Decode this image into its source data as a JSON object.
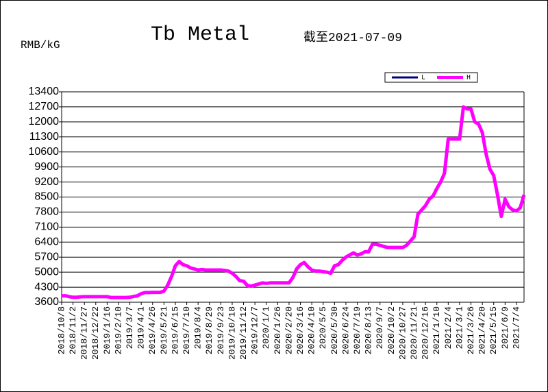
{
  "chart_data": {
    "type": "line",
    "title": "Tb Metal",
    "subtitle": "截至2021-07-09",
    "y_label": "RMB/kG",
    "categories": [
      "2018/10/8",
      null,
      null,
      "2018/11/2",
      null,
      null,
      "2018/11/27",
      null,
      null,
      "2018/12/22",
      null,
      null,
      "2019/1/16",
      null,
      null,
      "2019/2/10",
      null,
      null,
      "2019/3/7",
      null,
      null,
      "2019/4/1",
      null,
      null,
      "2019/4/26",
      null,
      null,
      "2019/5/21",
      null,
      null,
      "2019/6/15",
      null,
      null,
      "2019/7/10",
      null,
      null,
      "2019/8/4",
      null,
      null,
      "2019/8/29",
      null,
      null,
      "2019/9/23",
      null,
      null,
      "2019/10/18",
      null,
      null,
      "2019/11/12",
      null,
      null,
      "2019/12/7",
      null,
      null,
      "2020/1/1",
      null,
      null,
      "2020/1/26",
      null,
      null,
      "2020/2/20",
      null,
      null,
      "2020/3/16",
      null,
      null,
      "2020/4/10",
      null,
      null,
      "2020/5/5",
      null,
      null,
      "2020/5/30",
      null,
      null,
      "2020/6/24",
      null,
      null,
      "2020/7/19",
      null,
      null,
      "2020/8/13",
      null,
      null,
      "2020/9/7",
      null,
      null,
      "2020/10/2",
      null,
      null,
      "2020/10/27",
      null,
      null,
      "2020/11/21",
      null,
      null,
      "2020/12/16",
      null,
      null,
      "2021/1/10",
      null,
      null,
      "2021/2/4",
      null,
      null,
      "2021/3/1",
      null,
      null,
      "2021/3/26",
      null,
      null,
      "2021/4/20",
      null,
      null,
      "2021/5/15",
      null,
      null,
      "2021/6/9",
      null,
      null,
      "2021/7/4",
      null,
      null
    ],
    "series": [
      {
        "name": "L",
        "color": "#000080",
        "values": [
          3900,
          3900,
          3860,
          3830,
          3830,
          3850,
          3860,
          3860,
          3860,
          3860,
          3860,
          3860,
          3860,
          3820,
          3820,
          3820,
          3820,
          3820,
          3830,
          3870,
          3900,
          4000,
          4050,
          4050,
          4060,
          4060,
          4060,
          4120,
          4400,
          4800,
          5300,
          5500,
          5350,
          5300,
          5200,
          5150,
          5100,
          5120,
          5100,
          5100,
          5100,
          5100,
          5100,
          5080,
          5050,
          4950,
          4800,
          4600,
          4580,
          4380,
          4350,
          4400,
          4450,
          4500,
          4480,
          4500,
          4500,
          4500,
          4500,
          4500,
          4500,
          4750,
          5150,
          5350,
          5450,
          5250,
          5100,
          5050,
          5050,
          5020,
          5000,
          4950,
          5300,
          5350,
          5550,
          5700,
          5800,
          5900,
          5800,
          5850,
          5950,
          5950,
          6300,
          6300,
          6250,
          6200,
          6150,
          6150,
          6150,
          6150,
          6150,
          6250,
          6450,
          6650,
          7700,
          7900,
          8100,
          8400,
          8550,
          8900,
          9200,
          9600,
          11200,
          11200,
          11200,
          11200,
          12700,
          12600,
          12600,
          12000,
          11900,
          11500,
          10500,
          9800,
          9500,
          8600,
          7600,
          8400,
          8050,
          7900,
          7850,
          8000,
          8600
        ]
      },
      {
        "name": "H",
        "color": "#ff00ff",
        "values": [
          3900,
          3900,
          3860,
          3830,
          3830,
          3850,
          3860,
          3860,
          3860,
          3860,
          3860,
          3860,
          3860,
          3820,
          3820,
          3820,
          3820,
          3820,
          3830,
          3870,
          3900,
          4000,
          4050,
          4050,
          4060,
          4060,
          4060,
          4120,
          4400,
          4800,
          5300,
          5500,
          5350,
          5300,
          5200,
          5150,
          5100,
          5120,
          5100,
          5100,
          5100,
          5100,
          5100,
          5080,
          5050,
          4950,
          4800,
          4600,
          4580,
          4380,
          4350,
          4400,
          4450,
          4500,
          4480,
          4500,
          4500,
          4500,
          4500,
          4500,
          4500,
          4750,
          5150,
          5350,
          5450,
          5250,
          5100,
          5050,
          5050,
          5020,
          5000,
          4950,
          5300,
          5350,
          5550,
          5700,
          5800,
          5900,
          5800,
          5850,
          5950,
          5950,
          6300,
          6300,
          6250,
          6200,
          6150,
          6150,
          6150,
          6150,
          6150,
          6250,
          6450,
          6650,
          7700,
          7900,
          8100,
          8400,
          8550,
          8900,
          9200,
          9600,
          11200,
          11200,
          11200,
          11200,
          12700,
          12600,
          12600,
          12000,
          11900,
          11500,
          10500,
          9800,
          9500,
          8600,
          7600,
          8400,
          8050,
          7900,
          7850,
          8000,
          8600
        ]
      }
    ],
    "ylim": [
      3600,
      13400
    ],
    "yticks": [
      3600,
      4300,
      5000,
      5700,
      6400,
      7100,
      7800,
      8500,
      9200,
      9900,
      10600,
      11300,
      12000,
      12700,
      13400
    ],
    "grid": true,
    "legend": "top-right"
  }
}
